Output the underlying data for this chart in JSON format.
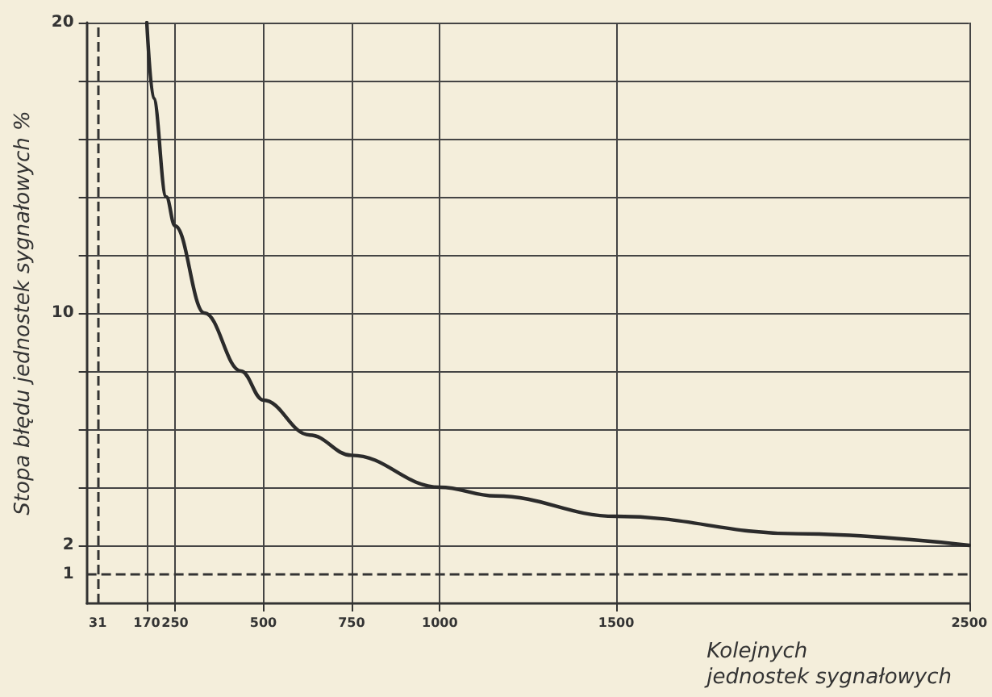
{
  "chart_data": {
    "type": "line",
    "xlabel": "Kolejnych\njednostek sygnałowych",
    "ylabel": "Stopa błędu jednostek sygnałowych %",
    "x": [
      170,
      189,
      225,
      250,
      333,
      437,
      500,
      631,
      750,
      1000,
      1158,
      1500,
      2014,
      2500
    ],
    "series": [
      {
        "color": "#2b2b2b",
        "values": [
          20,
          17.4,
          14,
          13,
          10,
          8,
          7,
          5.8,
          5.1,
          4,
          3.7,
          3,
          2.4,
          2
        ]
      }
    ],
    "xlim": [
      0,
      2500
    ],
    "xticks": [
      170,
      250,
      500,
      750,
      1000,
      1500,
      2500
    ],
    "ylim": [
      0,
      20
    ],
    "yticks": [
      2,
      {
        "value": 4,
        "label": null
      },
      {
        "value": 6,
        "label": null
      },
      {
        "value": 8,
        "label": null
      },
      10,
      {
        "value": 12,
        "label": null
      },
      {
        "value": 14,
        "label": null
      },
      {
        "value": 16,
        "label": null
      },
      {
        "value": 18,
        "label": null
      },
      20
    ],
    "ref_lines": [
      {
        "axis": "x",
        "value": 31,
        "label": "31",
        "line_style": "dashed"
      },
      {
        "axis": "y",
        "value": 1,
        "label": "1",
        "line_style": "dashed"
      }
    ],
    "grid": true,
    "marker": "none",
    "line_style": "solid"
  }
}
